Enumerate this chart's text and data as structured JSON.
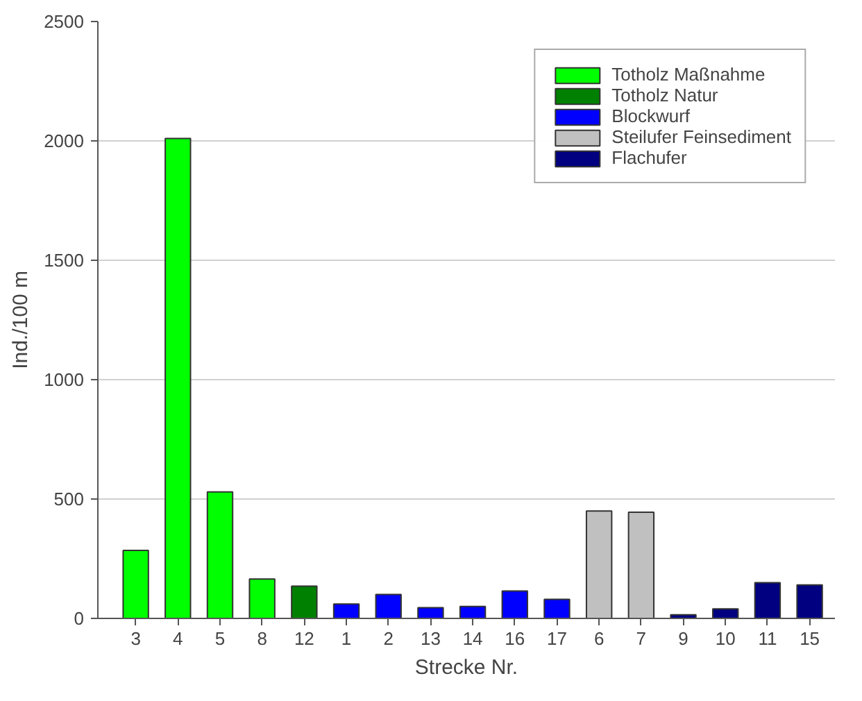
{
  "chart_data": {
    "type": "bar",
    "xlabel": "Strecke Nr.",
    "ylabel": "Ind./100 m",
    "categories": [
      "3",
      "4",
      "5",
      "8",
      "12",
      "1",
      "2",
      "13",
      "14",
      "16",
      "17",
      "6",
      "7",
      "9",
      "10",
      "11",
      "15"
    ],
    "series": [
      {
        "name": "Totholz Maßnahme",
        "color": "#00ff00",
        "values": [
          285,
          2010,
          530,
          165,
          null,
          null,
          null,
          null,
          null,
          null,
          null,
          null,
          null,
          null,
          null,
          null,
          null
        ]
      },
      {
        "name": "Totholz Natur",
        "color": "#008000",
        "values": [
          null,
          null,
          null,
          null,
          135,
          null,
          null,
          null,
          null,
          null,
          null,
          null,
          null,
          null,
          null,
          null,
          null
        ]
      },
      {
        "name": "Blockwurf",
        "color": "#0000ff",
        "values": [
          null,
          null,
          null,
          null,
          null,
          60,
          100,
          45,
          50,
          115,
          80,
          null,
          null,
          null,
          null,
          null,
          null
        ]
      },
      {
        "name": "Steilufer Feinsediment",
        "color": "#c0c0c0",
        "values": [
          null,
          null,
          null,
          null,
          null,
          null,
          null,
          null,
          null,
          null,
          null,
          450,
          445,
          null,
          null,
          null,
          null
        ]
      },
      {
        "name": "Flachufer",
        "color": "#000080",
        "values": [
          null,
          null,
          null,
          null,
          null,
          null,
          null,
          null,
          null,
          null,
          null,
          null,
          null,
          15,
          40,
          150,
          140
        ]
      }
    ],
    "ylim": [
      0,
      2500
    ],
    "yticks": [
      0,
      500,
      1000,
      1500,
      2000,
      2500
    ],
    "grid": "y",
    "legend": "top right"
  }
}
